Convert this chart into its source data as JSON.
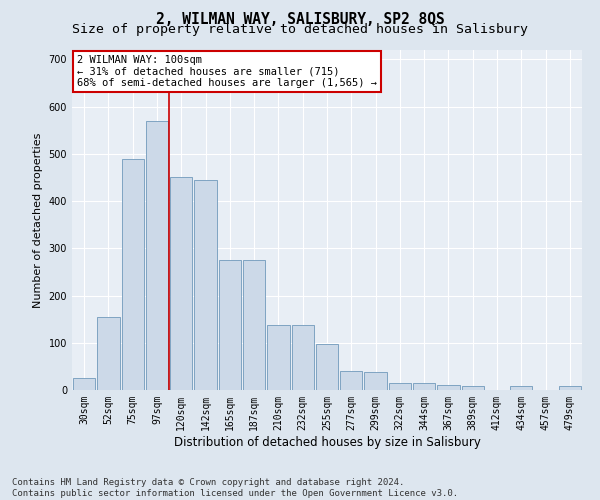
{
  "title": "2, WILMAN WAY, SALISBURY, SP2 8QS",
  "subtitle": "Size of property relative to detached houses in Salisbury",
  "xlabel": "Distribution of detached houses by size in Salisbury",
  "ylabel": "Number of detached properties",
  "footer_line1": "Contains HM Land Registry data © Crown copyright and database right 2024.",
  "footer_line2": "Contains public sector information licensed under the Open Government Licence v3.0.",
  "categories": [
    "30sqm",
    "52sqm",
    "75sqm",
    "97sqm",
    "120sqm",
    "142sqm",
    "165sqm",
    "187sqm",
    "210sqm",
    "232sqm",
    "255sqm",
    "277sqm",
    "299sqm",
    "322sqm",
    "344sqm",
    "367sqm",
    "389sqm",
    "412sqm",
    "434sqm",
    "457sqm",
    "479sqm"
  ],
  "values": [
    25,
    155,
    490,
    570,
    450,
    445,
    275,
    275,
    138,
    138,
    98,
    40,
    38,
    15,
    15,
    10,
    8,
    0,
    8,
    0,
    8
  ],
  "bar_color": "#ccd9e8",
  "bar_edge_color": "#7099bb",
  "vline_color": "#cc0000",
  "annotation_text": "2 WILMAN WAY: 100sqm\n← 31% of detached houses are smaller (715)\n68% of semi-detached houses are larger (1,565) →",
  "annotation_box_color": "#ffffff",
  "annotation_box_edge": "#cc0000",
  "ylim": [
    0,
    720
  ],
  "yticks": [
    0,
    100,
    200,
    300,
    400,
    500,
    600,
    700
  ],
  "bg_color": "#dde6ef",
  "plot_bg_color": "#e8eef5",
  "grid_color": "#ffffff",
  "title_fontsize": 10.5,
  "subtitle_fontsize": 9.5,
  "tick_fontsize": 7,
  "ylabel_fontsize": 8,
  "xlabel_fontsize": 8.5,
  "footer_fontsize": 6.5,
  "annotation_fontsize": 7.5
}
